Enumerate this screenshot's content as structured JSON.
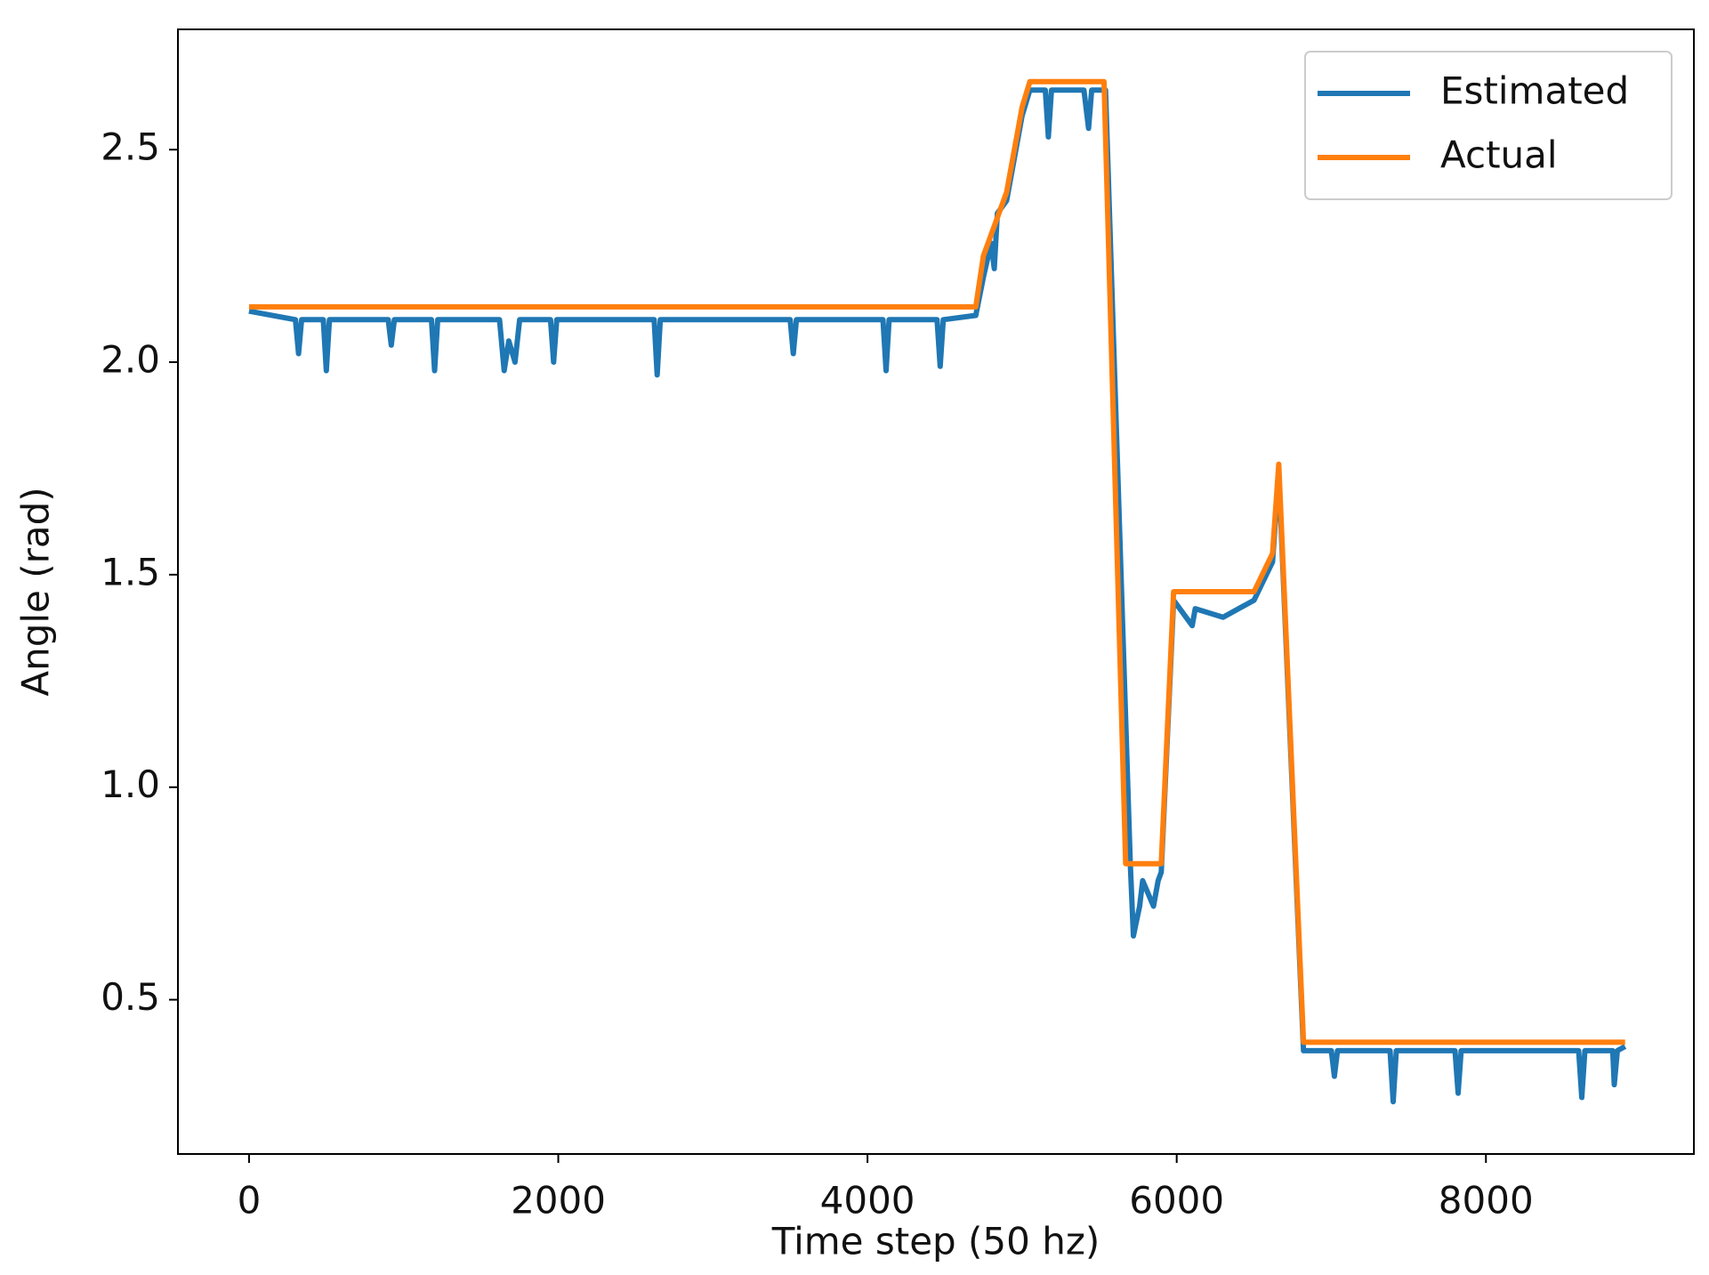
{
  "chart_data": {
    "type": "line",
    "xlabel": "Time step (50 hz)",
    "ylabel": "Angle (rad)",
    "xlim": [
      -460,
      9345
    ],
    "ylim": [
      0.137,
      2.783
    ],
    "xticks": [
      0,
      2000,
      4000,
      6000,
      8000
    ],
    "yticks": [
      0.5,
      {
        "value": 1.0,
        "label": "1.0"
      },
      1.5,
      {
        "value": 2.0,
        "label": "2.0"
      },
      2.5
    ],
    "legend": "upper right",
    "series": [
      {
        "name": "Estimated",
        "color": "#1f77b4",
        "x": [
          0,
          300,
          320,
          340,
          480,
          500,
          520,
          900,
          920,
          940,
          1180,
          1200,
          1220,
          1620,
          1650,
          1680,
          1720,
          1750,
          1950,
          1970,
          1990,
          2620,
          2640,
          2660,
          3500,
          3520,
          3540,
          4100,
          4120,
          4140,
          4450,
          4470,
          4490,
          4700,
          4750,
          4800,
          4820,
          4840,
          4900,
          5000,
          5050,
          5150,
          5170,
          5190,
          5400,
          5430,
          5450,
          5540,
          5700,
          5720,
          5760,
          5780,
          5850,
          5880,
          5900,
          5980,
          6100,
          6120,
          6300,
          6500,
          6620,
          6660,
          6820,
          7000,
          7020,
          7040,
          7380,
          7400,
          7420,
          7800,
          7820,
          7840,
          8600,
          8620,
          8640,
          8820,
          8830,
          8850,
          8900
        ],
        "values": [
          2.12,
          2.1,
          2.02,
          2.1,
          2.1,
          1.98,
          2.1,
          2.1,
          2.04,
          2.1,
          2.1,
          1.98,
          2.1,
          2.1,
          1.98,
          2.05,
          2.0,
          2.1,
          2.1,
          2.0,
          2.1,
          2.1,
          1.97,
          2.1,
          2.1,
          2.02,
          2.1,
          2.1,
          1.98,
          2.1,
          2.1,
          1.99,
          2.1,
          2.11,
          2.2,
          2.28,
          2.22,
          2.35,
          2.38,
          2.58,
          2.64,
          2.64,
          2.53,
          2.64,
          2.64,
          2.55,
          2.64,
          2.64,
          0.82,
          0.65,
          0.72,
          0.78,
          0.72,
          0.78,
          0.8,
          1.44,
          1.38,
          1.42,
          1.4,
          1.44,
          1.53,
          1.74,
          0.38,
          0.38,
          0.32,
          0.38,
          0.38,
          0.26,
          0.38,
          0.38,
          0.28,
          0.38,
          0.38,
          0.27,
          0.38,
          0.38,
          0.3,
          0.38,
          0.39
        ]
      },
      {
        "name": "Actual",
        "color": "#ff7f0e",
        "x": [
          0,
          4700,
          4750,
          4900,
          5000,
          5050,
          5530,
          5670,
          5900,
          5980,
          6500,
          6620,
          6660,
          6820,
          8900
        ],
        "values": [
          2.13,
          2.13,
          2.25,
          2.4,
          2.6,
          2.66,
          2.66,
          0.82,
          0.82,
          1.46,
          1.46,
          1.55,
          1.76,
          0.4,
          0.4
        ]
      }
    ]
  }
}
